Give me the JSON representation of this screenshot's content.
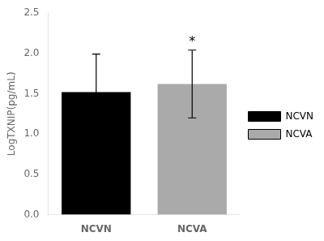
{
  "chart_data": {
    "type": "bar",
    "categories": [
      "NCVN",
      "NCVA"
    ],
    "values": [
      1.52,
      1.62
    ],
    "errors_upper": [
      0.47,
      0.42
    ],
    "errors_lower": [
      0.47,
      0.42
    ],
    "colors": [
      "#000000",
      "#aaaaaa"
    ],
    "ylabel": "LogTXNIP(pg/mL)",
    "ylim": [
      0.0,
      2.5
    ],
    "yticks": [
      {
        "value": 0,
        "label": "0.0"
      },
      0.5,
      {
        "value": 1,
        "label": "1.0"
      },
      1.5,
      {
        "value": 2,
        "label": "2.0"
      },
      2.5
    ],
    "annotations": [
      {
        "x": "NCVA",
        "text": "*"
      }
    ],
    "grid": false,
    "legend": "right"
  }
}
